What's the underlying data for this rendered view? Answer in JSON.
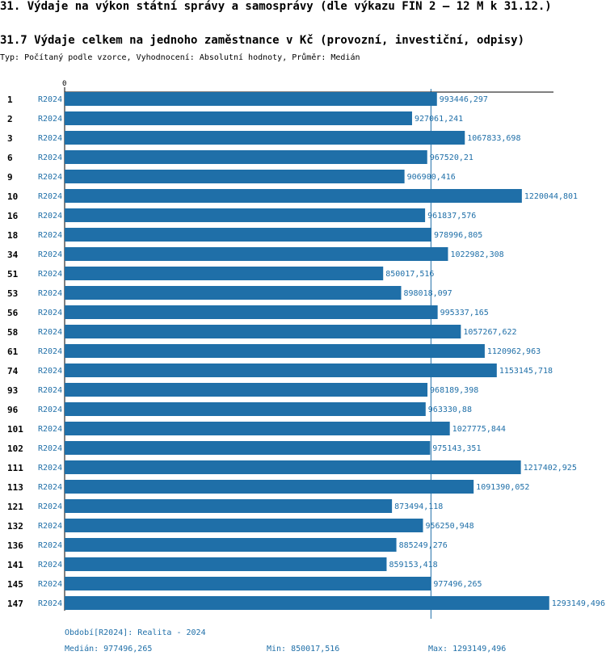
{
  "page": {
    "title": "31. Výdaje na výkon státní správy a samosprávy (dle výkazu FIN 2 – 12 M k 31.12.)",
    "subtitle": "31.7 Výdaje celkem na jednoho zaměstnance v Kč (provozní, investiční, odpisy)",
    "description": "Typ: Počítaný podle vzorce, Vyhodnocení: Absolutní hodnoty, Průměr: Medián"
  },
  "colors": {
    "bar": "#1f6fa8",
    "label": "#1f6fa8",
    "axis": "#000000"
  },
  "chart_data": {
    "type": "bar",
    "orientation": "horizontal",
    "axis_zero_label": "0",
    "xlim": [
      0,
      1320000
    ],
    "period": "R2024",
    "categories": [
      "1",
      "2",
      "3",
      "6",
      "9",
      "10",
      "16",
      "18",
      "34",
      "51",
      "53",
      "56",
      "58",
      "61",
      "74",
      "93",
      "96",
      "101",
      "102",
      "111",
      "113",
      "121",
      "132",
      "136",
      "141",
      "145",
      "147"
    ],
    "values": [
      993446.297,
      927061.241,
      1067833.698,
      967520.21,
      906900.416,
      1220044.801,
      961837.576,
      978996.805,
      1022982.308,
      850017.516,
      898018.097,
      995337.165,
      1057267.622,
      1120962.963,
      1153145.718,
      968189.398,
      963330.88,
      1027775.844,
      975143.351,
      1217402.925,
      1091390.052,
      873494.118,
      956250.948,
      885249.276,
      859153.418,
      977496.265,
      1293149.496
    ],
    "value_labels": [
      "993446,297",
      "927061,241",
      "1067833,698",
      "967520,21",
      "906900,416",
      "1220044,801",
      "961837,576",
      "978996,805",
      "1022982,308",
      "850017,516",
      "898018,097",
      "995337,165",
      "1057267,622",
      "1120962,963",
      "1153145,718",
      "968189,398",
      "963330,88",
      "1027775,844",
      "975143,351",
      "1217402,925",
      "1091390,052",
      "873494,118",
      "956250,948",
      "885249,276",
      "859153,418",
      "977496,265",
      "1293149,496"
    ],
    "median": 977496.265
  },
  "footer": {
    "period_legend": "Období[R2024]: Realita - 2024",
    "median_label": "Medián: 977496,265",
    "min_label": "Min: 850017,516",
    "max_label": "Max: 1293149,496"
  }
}
